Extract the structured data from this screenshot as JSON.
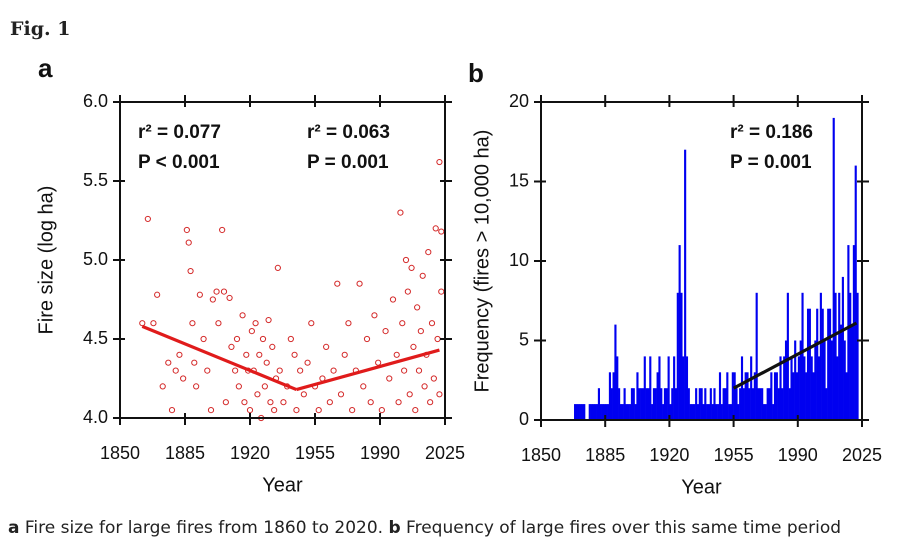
{
  "figure_label": "Fig. 1",
  "caption": [
    {
      "text": "a",
      "bold": true
    },
    {
      "text": " Fire size for large fires from 1860 to 2020. ",
      "bold": false
    },
    {
      "text": "b",
      "bold": true
    },
    {
      "text": " Frequency of large fires over this same time period",
      "bold": false
    }
  ],
  "chart_data": [
    {
      "type": "scatter",
      "panel": "a",
      "x_label": "Year",
      "y_label": "Fire size (log ha)",
      "xlim": [
        1850,
        2025
      ],
      "xticks": [
        1850,
        1885,
        1920,
        1955,
        1990,
        2025
      ],
      "ylim": [
        4,
        6
      ],
      "yticks": [
        {
          "value": 4,
          "label": "4.0"
        },
        4.5,
        {
          "value": 5,
          "label": "5.0"
        },
        5.5,
        {
          "value": 6,
          "label": "6.0"
        }
      ],
      "color": "#d42a2a",
      "x": [
        1862,
        1865,
        1868,
        1870,
        1873,
        1876,
        1878,
        1880,
        1882,
        1884,
        1886,
        1887,
        1888,
        1889,
        1890,
        1891,
        1893,
        1895,
        1897,
        1899,
        1900,
        1902,
        1903,
        1905,
        1906,
        1907,
        1909,
        1910,
        1912,
        1913,
        1914,
        1916,
        1917,
        1918,
        1919,
        1920,
        1921,
        1922,
        1923,
        1924,
        1925,
        1926,
        1927,
        1928,
        1929,
        1930,
        1931,
        1932,
        1933,
        1934,
        1935,
        1936,
        1938,
        1940,
        1942,
        1944,
        1945,
        1947,
        1949,
        1951,
        1953,
        1955,
        1957,
        1959,
        1961,
        1963,
        1965,
        1967,
        1969,
        1971,
        1973,
        1975,
        1977,
        1979,
        1981,
        1983,
        1985,
        1987,
        1989,
        1991,
        1993,
        1995,
        1997,
        1999,
        2000,
        2001,
        2002,
        2003,
        2004,
        2005,
        2006,
        2007,
        2008,
        2009,
        2010,
        2011,
        2012,
        2013,
        2014,
        2015,
        2016,
        2017,
        2018,
        2019,
        2020,
        2021,
        2022,
        2022,
        2023,
        2023
      ],
      "y": [
        4.6,
        5.26,
        4.6,
        4.78,
        4.2,
        4.35,
        4.05,
        4.3,
        4.4,
        4.25,
        5.19,
        5.11,
        4.93,
        4.6,
        4.35,
        4.2,
        4.78,
        4.5,
        4.3,
        4.05,
        4.75,
        4.8,
        4.6,
        5.19,
        4.8,
        4.1,
        4.76,
        4.45,
        4.3,
        4.5,
        4.2,
        4.65,
        4.1,
        4.4,
        4.3,
        4.05,
        4.55,
        4.3,
        4.6,
        4.15,
        4.4,
        4.0,
        4.5,
        4.2,
        4.35,
        4.62,
        4.1,
        4.45,
        4.05,
        4.25,
        4.95,
        4.3,
        4.1,
        4.2,
        4.5,
        4.4,
        4.05,
        4.3,
        4.15,
        4.35,
        4.6,
        4.2,
        4.05,
        4.25,
        4.45,
        4.1,
        4.3,
        4.85,
        4.15,
        4.4,
        4.6,
        4.05,
        4.3,
        4.85,
        4.2,
        4.5,
        4.1,
        4.65,
        4.35,
        4.05,
        4.55,
        4.25,
        4.75,
        4.4,
        4.1,
        5.3,
        4.6,
        4.3,
        5.0,
        4.8,
        4.15,
        4.95,
        4.45,
        4.05,
        4.7,
        4.3,
        4.55,
        4.9,
        4.2,
        4.4,
        5.05,
        4.1,
        4.6,
        4.25,
        5.2,
        4.5,
        5.62,
        4.15,
        5.18,
        4.8
      ],
      "fit_lines": [
        {
          "x": [
            1862,
            1945
          ],
          "y": [
            4.58,
            4.18
          ]
        },
        {
          "x": [
            1945,
            2022
          ],
          "y": [
            4.18,
            4.43
          ]
        }
      ],
      "fit_color": "#e01b1b",
      "annotations": [
        "r² = 0.077",
        "P < 0.001",
        "r² = 0.063",
        "P = 0.001"
      ]
    },
    {
      "type": "bar",
      "panel": "b",
      "x_label": "Year",
      "y_label": "Frequency (fires > 10,000 ha)",
      "xlim": [
        1850,
        2025
      ],
      "xticks": [
        1850,
        1885,
        1920,
        1955,
        1990,
        2025
      ],
      "ylim": [
        0,
        20
      ],
      "yticks": [
        0,
        5,
        10,
        15,
        20
      ],
      "color": "#0000f0",
      "x": [
        1868,
        1869,
        1870,
        1871,
        1872,
        1873,
        1874,
        1875,
        1876,
        1877,
        1878,
        1879,
        1880,
        1881,
        1882,
        1883,
        1884,
        1885,
        1886,
        1887,
        1888,
        1889,
        1890,
        1891,
        1892,
        1893,
        1894,
        1895,
        1896,
        1897,
        1898,
        1899,
        1900,
        1901,
        1902,
        1903,
        1904,
        1905,
        1906,
        1907,
        1908,
        1909,
        1910,
        1911,
        1912,
        1913,
        1914,
        1915,
        1916,
        1917,
        1918,
        1919,
        1920,
        1921,
        1922,
        1923,
        1924,
        1925,
        1926,
        1927,
        1928,
        1929,
        1930,
        1931,
        1932,
        1933,
        1934,
        1935,
        1936,
        1937,
        1938,
        1939,
        1940,
        1941,
        1942,
        1943,
        1944,
        1945,
        1946,
        1947,
        1948,
        1949,
        1950,
        1951,
        1952,
        1953,
        1954,
        1955,
        1956,
        1957,
        1958,
        1959,
        1960,
        1961,
        1962,
        1963,
        1964,
        1965,
        1966,
        1967,
        1968,
        1969,
        1970,
        1971,
        1972,
        1973,
        1974,
        1975,
        1976,
        1977,
        1978,
        1979,
        1980,
        1981,
        1982,
        1983,
        1984,
        1985,
        1986,
        1987,
        1988,
        1989,
        1990,
        1991,
        1992,
        1993,
        1994,
        1995,
        1996,
        1997,
        1998,
        1999,
        2000,
        2001,
        2002,
        2003,
        2004,
        2005,
        2006,
        2007,
        2008,
        2009,
        2010,
        2011,
        2012,
        2013,
        2014,
        2015,
        2016,
        2017,
        2018,
        2019,
        2020,
        2021,
        2022
      ],
      "values": [
        1,
        1,
        1,
        1,
        1,
        1,
        0,
        0,
        1,
        1,
        1,
        1,
        1,
        2,
        1,
        1,
        1,
        1,
        1,
        3,
        2,
        3,
        6,
        4,
        2,
        1,
        1,
        2,
        1,
        1,
        1,
        2,
        2,
        1,
        3,
        2,
        2,
        2,
        4,
        2,
        2,
        4,
        1,
        2,
        2,
        3,
        4,
        2,
        1,
        2,
        2,
        4,
        1,
        2,
        4,
        2,
        8,
        11,
        8,
        4,
        17,
        4,
        2,
        1,
        1,
        1,
        2,
        1,
        2,
        2,
        1,
        2,
        1,
        1,
        2,
        1,
        2,
        1,
        1,
        3,
        1,
        2,
        2,
        3,
        1,
        1,
        3,
        3,
        2,
        1,
        2,
        4,
        2,
        3,
        3,
        2,
        4,
        2,
        3,
        8,
        2,
        2,
        2,
        1,
        1,
        2,
        2,
        3,
        1,
        3,
        3,
        2,
        4,
        2,
        4,
        5,
        8,
        2,
        4,
        3,
        5,
        3,
        4,
        5,
        8,
        4,
        3,
        7,
        7,
        4,
        3,
        5,
        7,
        4,
        8,
        7,
        5,
        2,
        7,
        7,
        5,
        19,
        8,
        4,
        8,
        6,
        9,
        5,
        3,
        11,
        8,
        6,
        11,
        16,
        8
      ],
      "fit_lines": [
        {
          "x": [
            1955,
            2022
          ],
          "y": [
            2,
            6.1
          ]
        }
      ],
      "fit_color": "#111111",
      "annotations": [
        "r² = 0.186",
        "P = 0.001"
      ]
    }
  ]
}
